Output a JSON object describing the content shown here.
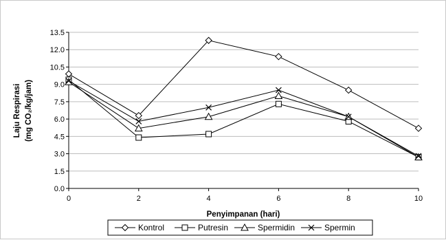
{
  "chart_data": {
    "type": "line",
    "title": "",
    "xlabel": "Penyimpanan (hari)",
    "ylabel_line1": "Laju Respirasi",
    "ylabel_line2": "(mg CO₂/kg/jam)",
    "x": [
      0,
      2,
      4,
      6,
      8,
      10
    ],
    "x_ticks": [
      "0",
      "2",
      "4",
      "6",
      "8",
      "10"
    ],
    "xlim": [
      0,
      10
    ],
    "ylim": [
      0,
      13.5
    ],
    "y_ticks": [
      "0.0",
      "1.5",
      "3.0",
      "4.5",
      "6.0",
      "7.5",
      "9.0",
      "10.5",
      "12.0",
      "13.5"
    ],
    "grid": "horizontal",
    "legend_position": "bottom",
    "series": [
      {
        "name": "Kontrol",
        "marker": "diamond",
        "values": [
          9.9,
          6.3,
          12.8,
          11.4,
          8.5,
          5.2
        ]
      },
      {
        "name": "Putresin",
        "marker": "square",
        "values": [
          9.4,
          4.4,
          4.7,
          7.3,
          5.8,
          2.7
        ]
      },
      {
        "name": "Spermidin",
        "marker": "triangle",
        "values": [
          9.2,
          5.2,
          6.2,
          8.0,
          6.2,
          2.7
        ]
      },
      {
        "name": "Spermin",
        "marker": "x",
        "values": [
          9.3,
          5.8,
          7.0,
          8.5,
          6.2,
          2.8
        ]
      }
    ]
  }
}
